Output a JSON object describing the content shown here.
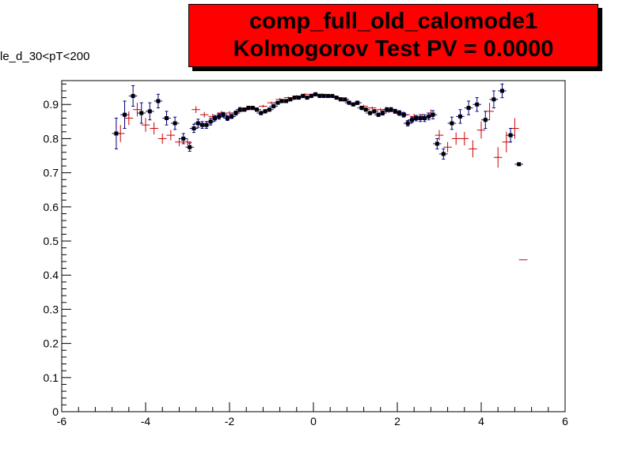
{
  "header": {
    "title_line1": "comp_full_old_calomode1",
    "title_line2": "Kolmogorov Test PV = 0.0000",
    "subtitle": "le_d_30<pT<200",
    "title_bg": "#ff0000"
  },
  "chart_data": {
    "type": "scatter",
    "xlim": [
      -6,
      6
    ],
    "ylim": [
      0,
      0.97
    ],
    "x_ticks": [
      "-6",
      "-4",
      "-2",
      "0",
      "2",
      "4",
      "6"
    ],
    "y_ticks": [
      "0",
      "0.1",
      "0.2",
      "0.3",
      "0.4",
      "0.5",
      "0.6",
      "0.7",
      "0.8",
      "0.9"
    ],
    "grid": false,
    "series": [
      {
        "color": "#cc0000",
        "marker": "cross",
        "points": [
          {
            "x": -4.6,
            "y": 0.815,
            "e": 0.025
          },
          {
            "x": -4.4,
            "y": 0.86,
            "e": 0.02
          },
          {
            "x": -4.2,
            "y": 0.885,
            "e": 0.02
          },
          {
            "x": -4.0,
            "y": 0.84,
            "e": 0.02
          },
          {
            "x": -3.8,
            "y": 0.83,
            "e": 0.018
          },
          {
            "x": -3.6,
            "y": 0.8,
            "e": 0.015
          },
          {
            "x": -3.4,
            "y": 0.81,
            "e": 0.015
          },
          {
            "x": -3.2,
            "y": 0.79,
            "e": 0.012
          },
          {
            "x": -3.0,
            "y": 0.79,
            "e": 0.01
          },
          {
            "x": -2.8,
            "y": 0.885,
            "e": 0.01
          },
          {
            "x": -2.6,
            "y": 0.87,
            "e": 0.008
          },
          {
            "x": -2.4,
            "y": 0.865,
            "e": 0.008
          },
          {
            "x": -2.2,
            "y": 0.875,
            "e": 0.006
          },
          {
            "x": -2.0,
            "y": 0.875,
            "e": 0.006
          },
          {
            "x": -1.8,
            "y": 0.88,
            "e": 0.005
          },
          {
            "x": -1.6,
            "y": 0.885,
            "e": 0.005
          },
          {
            "x": -1.4,
            "y": 0.89,
            "e": 0.004
          },
          {
            "x": -1.2,
            "y": 0.895,
            "e": 0.004
          },
          {
            "x": -1.0,
            "y": 0.905,
            "e": 0.004
          },
          {
            "x": -0.8,
            "y": 0.915,
            "e": 0.004
          },
          {
            "x": -0.6,
            "y": 0.92,
            "e": 0.003
          },
          {
            "x": -0.4,
            "y": 0.925,
            "e": 0.003
          },
          {
            "x": -0.2,
            "y": 0.93,
            "e": 0.003
          },
          {
            "x": 0.0,
            "y": 0.93,
            "e": 0.003
          },
          {
            "x": 0.2,
            "y": 0.93,
            "e": 0.003
          },
          {
            "x": 0.4,
            "y": 0.925,
            "e": 0.003
          },
          {
            "x": 0.6,
            "y": 0.92,
            "e": 0.003
          },
          {
            "x": 0.8,
            "y": 0.91,
            "e": 0.004
          },
          {
            "x": 1.0,
            "y": 0.905,
            "e": 0.004
          },
          {
            "x": 1.2,
            "y": 0.895,
            "e": 0.004
          },
          {
            "x": 1.4,
            "y": 0.89,
            "e": 0.004
          },
          {
            "x": 1.6,
            "y": 0.885,
            "e": 0.005
          },
          {
            "x": 1.8,
            "y": 0.88,
            "e": 0.005
          },
          {
            "x": 2.0,
            "y": 0.875,
            "e": 0.006
          },
          {
            "x": 2.2,
            "y": 0.87,
            "e": 0.006
          },
          {
            "x": 2.4,
            "y": 0.865,
            "e": 0.008
          },
          {
            "x": 2.6,
            "y": 0.865,
            "e": 0.008
          },
          {
            "x": 2.8,
            "y": 0.875,
            "e": 0.01
          },
          {
            "x": 3.0,
            "y": 0.81,
            "e": 0.015
          },
          {
            "x": 3.2,
            "y": 0.775,
            "e": 0.015
          },
          {
            "x": 3.4,
            "y": 0.8,
            "e": 0.018
          },
          {
            "x": 3.6,
            "y": 0.8,
            "e": 0.02
          },
          {
            "x": 3.8,
            "y": 0.77,
            "e": 0.025
          },
          {
            "x": 4.0,
            "y": 0.825,
            "e": 0.025
          },
          {
            "x": 4.2,
            "y": 0.88,
            "e": 0.025
          },
          {
            "x": 4.4,
            "y": 0.745,
            "e": 0.03
          },
          {
            "x": 4.6,
            "y": 0.79,
            "e": 0.03
          },
          {
            "x": 4.8,
            "y": 0.83,
            "e": 0.03
          },
          {
            "x": 5.0,
            "y": 0.445,
            "e": 0.0
          }
        ]
      },
      {
        "color": "#000000",
        "err_color": "#000080",
        "marker": "square",
        "points": [
          {
            "x": -4.7,
            "y": 0.815,
            "e": 0.045
          },
          {
            "x": -4.5,
            "y": 0.87,
            "e": 0.04
          },
          {
            "x": -4.3,
            "y": 0.925,
            "e": 0.03
          },
          {
            "x": -4.1,
            "y": 0.875,
            "e": 0.03
          },
          {
            "x": -3.9,
            "y": 0.88,
            "e": 0.025
          },
          {
            "x": -3.7,
            "y": 0.91,
            "e": 0.02
          },
          {
            "x": -3.5,
            "y": 0.86,
            "e": 0.02
          },
          {
            "x": -3.3,
            "y": 0.845,
            "e": 0.018
          },
          {
            "x": -3.1,
            "y": 0.8,
            "e": 0.015
          },
          {
            "x": -2.95,
            "y": 0.775,
            "e": 0.012
          },
          {
            "x": -2.85,
            "y": 0.83,
            "e": 0.012
          },
          {
            "x": -2.75,
            "y": 0.845,
            "e": 0.012
          },
          {
            "x": -2.65,
            "y": 0.84,
            "e": 0.01
          },
          {
            "x": -2.55,
            "y": 0.84,
            "e": 0.01
          },
          {
            "x": -2.45,
            "y": 0.85,
            "e": 0.01
          },
          {
            "x": -2.35,
            "y": 0.86,
            "e": 0.008
          },
          {
            "x": -2.25,
            "y": 0.865,
            "e": 0.008
          },
          {
            "x": -2.15,
            "y": 0.87,
            "e": 0.007
          },
          {
            "x": -2.05,
            "y": 0.86,
            "e": 0.007
          },
          {
            "x": -1.95,
            "y": 0.865,
            "e": 0.006
          },
          {
            "x": -1.85,
            "y": 0.875,
            "e": 0.006
          },
          {
            "x": -1.75,
            "y": 0.885,
            "e": 0.006
          },
          {
            "x": -1.65,
            "y": 0.885,
            "e": 0.005
          },
          {
            "x": -1.55,
            "y": 0.89,
            "e": 0.005
          },
          {
            "x": -1.45,
            "y": 0.89,
            "e": 0.005
          },
          {
            "x": -1.35,
            "y": 0.885,
            "e": 0.005
          },
          {
            "x": -1.25,
            "y": 0.875,
            "e": 0.005
          },
          {
            "x": -1.15,
            "y": 0.88,
            "e": 0.005
          },
          {
            "x": -1.05,
            "y": 0.885,
            "e": 0.005
          },
          {
            "x": -0.95,
            "y": 0.895,
            "e": 0.005
          },
          {
            "x": -0.85,
            "y": 0.905,
            "e": 0.004
          },
          {
            "x": -0.75,
            "y": 0.91,
            "e": 0.004
          },
          {
            "x": -0.65,
            "y": 0.91,
            "e": 0.004
          },
          {
            "x": -0.55,
            "y": 0.915,
            "e": 0.004
          },
          {
            "x": -0.45,
            "y": 0.92,
            "e": 0.004
          },
          {
            "x": -0.35,
            "y": 0.92,
            "e": 0.004
          },
          {
            "x": -0.25,
            "y": 0.925,
            "e": 0.004
          },
          {
            "x": -0.15,
            "y": 0.92,
            "e": 0.004
          },
          {
            "x": -0.05,
            "y": 0.925,
            "e": 0.004
          },
          {
            "x": 0.05,
            "y": 0.93,
            "e": 0.004
          },
          {
            "x": 0.15,
            "y": 0.925,
            "e": 0.004
          },
          {
            "x": 0.25,
            "y": 0.925,
            "e": 0.004
          },
          {
            "x": 0.35,
            "y": 0.925,
            "e": 0.004
          },
          {
            "x": 0.45,
            "y": 0.925,
            "e": 0.004
          },
          {
            "x": 0.55,
            "y": 0.92,
            "e": 0.004
          },
          {
            "x": 0.65,
            "y": 0.915,
            "e": 0.004
          },
          {
            "x": 0.75,
            "y": 0.915,
            "e": 0.004
          },
          {
            "x": 0.85,
            "y": 0.905,
            "e": 0.004
          },
          {
            "x": 0.95,
            "y": 0.9,
            "e": 0.004
          },
          {
            "x": 1.05,
            "y": 0.905,
            "e": 0.005
          },
          {
            "x": 1.15,
            "y": 0.89,
            "e": 0.005
          },
          {
            "x": 1.25,
            "y": 0.885,
            "e": 0.005
          },
          {
            "x": 1.35,
            "y": 0.875,
            "e": 0.005
          },
          {
            "x": 1.45,
            "y": 0.88,
            "e": 0.005
          },
          {
            "x": 1.55,
            "y": 0.87,
            "e": 0.005
          },
          {
            "x": 1.65,
            "y": 0.875,
            "e": 0.006
          },
          {
            "x": 1.75,
            "y": 0.885,
            "e": 0.006
          },
          {
            "x": 1.85,
            "y": 0.885,
            "e": 0.006
          },
          {
            "x": 1.95,
            "y": 0.88,
            "e": 0.006
          },
          {
            "x": 2.05,
            "y": 0.875,
            "e": 0.007
          },
          {
            "x": 2.15,
            "y": 0.87,
            "e": 0.007
          },
          {
            "x": 2.25,
            "y": 0.845,
            "e": 0.008
          },
          {
            "x": 2.35,
            "y": 0.855,
            "e": 0.008
          },
          {
            "x": 2.45,
            "y": 0.86,
            "e": 0.008
          },
          {
            "x": 2.55,
            "y": 0.86,
            "e": 0.01
          },
          {
            "x": 2.65,
            "y": 0.86,
            "e": 0.01
          },
          {
            "x": 2.75,
            "y": 0.865,
            "e": 0.01
          },
          {
            "x": 2.85,
            "y": 0.87,
            "e": 0.012
          },
          {
            "x": 2.95,
            "y": 0.785,
            "e": 0.015
          },
          {
            "x": 3.1,
            "y": 0.755,
            "e": 0.015
          },
          {
            "x": 3.3,
            "y": 0.845,
            "e": 0.018
          },
          {
            "x": 3.5,
            "y": 0.865,
            "e": 0.02
          },
          {
            "x": 3.7,
            "y": 0.89,
            "e": 0.02
          },
          {
            "x": 3.9,
            "y": 0.9,
            "e": 0.02
          },
          {
            "x": 4.1,
            "y": 0.855,
            "e": 0.025
          },
          {
            "x": 4.3,
            "y": 0.915,
            "e": 0.025
          },
          {
            "x": 4.5,
            "y": 0.94,
            "e": 0.02
          },
          {
            "x": 4.7,
            "y": 0.81,
            "e": 0.02
          },
          {
            "x": 4.9,
            "y": 0.725,
            "e": 0.0
          }
        ]
      }
    ]
  }
}
